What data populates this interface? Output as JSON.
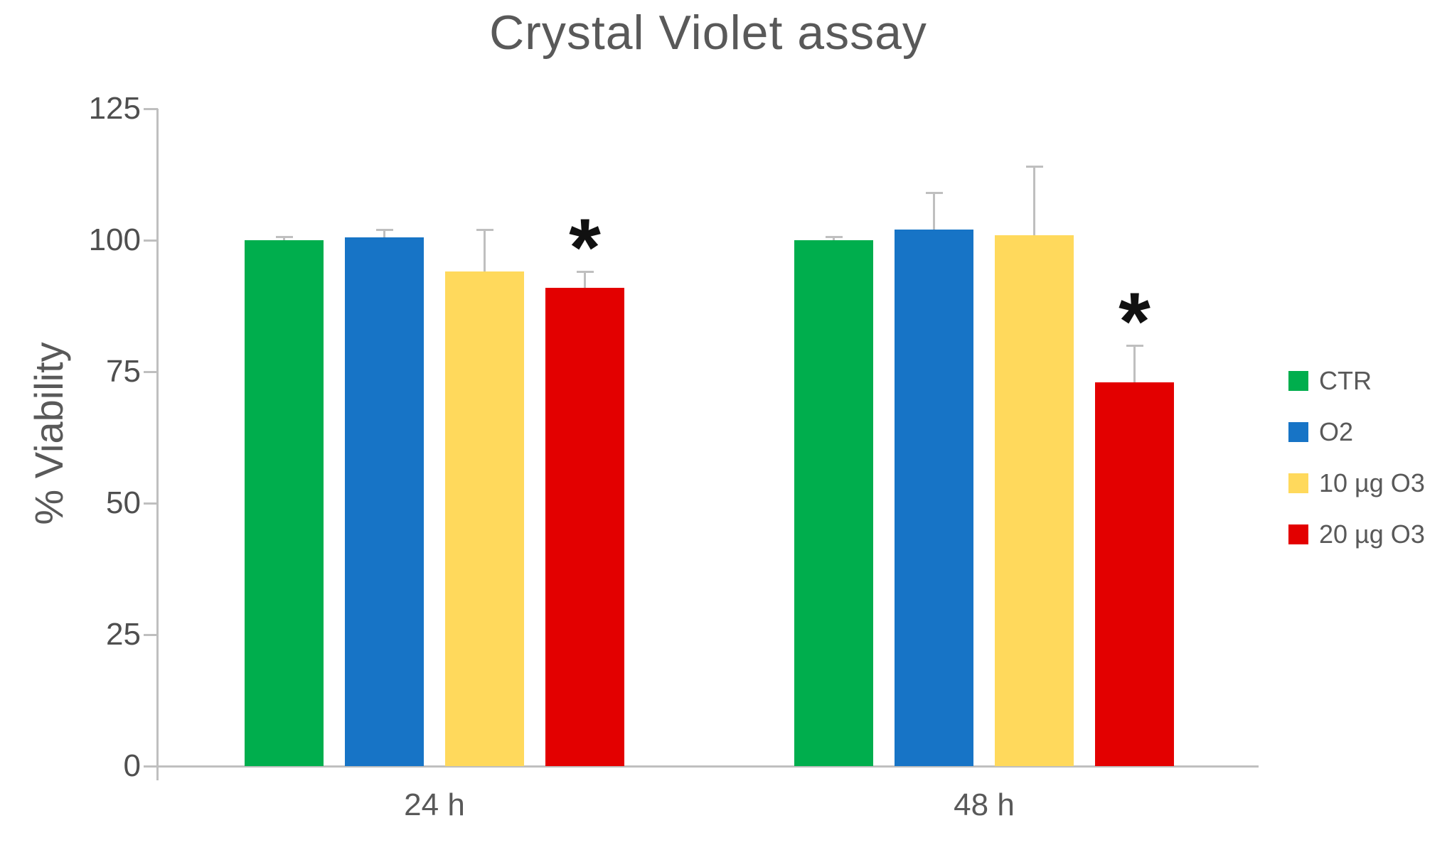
{
  "title": "Crystal Violet assay",
  "chart_data": {
    "type": "bar",
    "title": "Crystal Violet assay",
    "xlabel": "",
    "ylabel": "% Viability",
    "ylim": [
      0,
      125
    ],
    "yticks": [
      0,
      25,
      50,
      75,
      100,
      125
    ],
    "categories": [
      "24 h",
      "48 h"
    ],
    "series": [
      {
        "name": "CTR",
        "color": "#00AE4D",
        "values": [
          100,
          100
        ],
        "errors": [
          0.7,
          0.7
        ],
        "sig": [
          false,
          false
        ]
      },
      {
        "name": "O2",
        "color": "#1774C6",
        "values": [
          100.5,
          102
        ],
        "errors": [
          1.5,
          7
        ],
        "sig": [
          false,
          false
        ]
      },
      {
        "name": "10 µg O3",
        "color": "#FFD95C",
        "values": [
          94,
          101
        ],
        "errors": [
          8,
          13
        ],
        "sig": [
          false,
          false
        ]
      },
      {
        "name": "20 µg O3",
        "color": "#E30000",
        "values": [
          91,
          73
        ],
        "errors": [
          3,
          7
        ],
        "sig": [
          true,
          true
        ]
      }
    ],
    "significance_marker": "*",
    "legend_position": "right",
    "grid": false,
    "text_color": "#595959",
    "axis_color": "#BFBFBF",
    "error_bar_color": "#BFBFBF"
  }
}
